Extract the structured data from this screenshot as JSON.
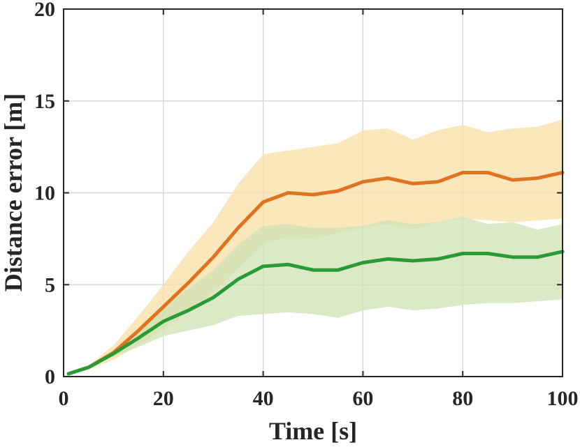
{
  "chart_data": {
    "type": "line",
    "title": "",
    "xlabel": "Time [s]",
    "ylabel": "Distance error [m]",
    "xlim": [
      0,
      100
    ],
    "ylim": [
      0,
      20
    ],
    "xticks": [
      0,
      20,
      40,
      60,
      80,
      100
    ],
    "yticks": [
      0,
      5,
      10,
      15,
      20
    ],
    "xtick_labels": [
      "0",
      "20",
      "40",
      "60",
      "80",
      "100"
    ],
    "ytick_labels": [
      "0",
      "5",
      "10",
      "15",
      "20"
    ],
    "grid": true,
    "legend": null,
    "series": [
      {
        "name": "orange",
        "color": "#e0731f",
        "band_color": "#f9dfa6",
        "x": [
          1,
          5,
          10,
          15,
          20,
          25,
          30,
          35,
          40,
          45,
          50,
          55,
          60,
          65,
          70,
          75,
          80,
          85,
          90,
          95,
          100
        ],
        "mean": [
          0.15,
          0.5,
          1.3,
          2.5,
          3.8,
          5.1,
          6.5,
          8.1,
          9.5,
          10.0,
          9.9,
          10.1,
          10.6,
          10.8,
          10.5,
          10.6,
          11.1,
          11.1,
          10.7,
          10.8,
          11.1
        ],
        "upper": [
          0.2,
          0.6,
          1.7,
          3.3,
          5.0,
          6.8,
          8.4,
          10.5,
          12.1,
          12.3,
          12.5,
          12.7,
          13.4,
          13.5,
          12.9,
          13.4,
          13.7,
          13.3,
          13.5,
          13.6,
          14.0
        ],
        "lower": [
          0.1,
          0.4,
          0.9,
          1.7,
          2.6,
          3.5,
          4.6,
          5.9,
          7.2,
          7.6,
          7.5,
          7.8,
          8.1,
          8.3,
          8.0,
          8.4,
          8.6,
          8.5,
          8.4,
          8.5,
          8.6
        ]
      },
      {
        "name": "green",
        "color": "#2a9a35",
        "band_color": "#cfe2b3",
        "x": [
          1,
          5,
          10,
          15,
          20,
          25,
          30,
          35,
          40,
          45,
          50,
          55,
          60,
          65,
          70,
          75,
          80,
          85,
          90,
          95,
          100
        ],
        "mean": [
          0.15,
          0.5,
          1.25,
          2.1,
          3.0,
          3.6,
          4.3,
          5.3,
          6.0,
          6.1,
          5.8,
          5.8,
          6.2,
          6.4,
          6.3,
          6.4,
          6.7,
          6.7,
          6.5,
          6.5,
          6.8
        ],
        "upper": [
          0.2,
          0.55,
          1.4,
          2.6,
          3.8,
          4.8,
          5.8,
          7.2,
          8.2,
          8.3,
          8.1,
          8.1,
          8.2,
          8.5,
          8.3,
          8.4,
          8.7,
          8.3,
          8.4,
          8.0,
          8.3
        ],
        "lower": [
          0.1,
          0.45,
          1.1,
          1.6,
          2.2,
          2.5,
          2.8,
          3.3,
          3.4,
          3.5,
          3.4,
          3.2,
          3.6,
          3.8,
          3.6,
          3.7,
          3.9,
          4.0,
          4.0,
          4.1,
          4.2
        ]
      }
    ]
  }
}
